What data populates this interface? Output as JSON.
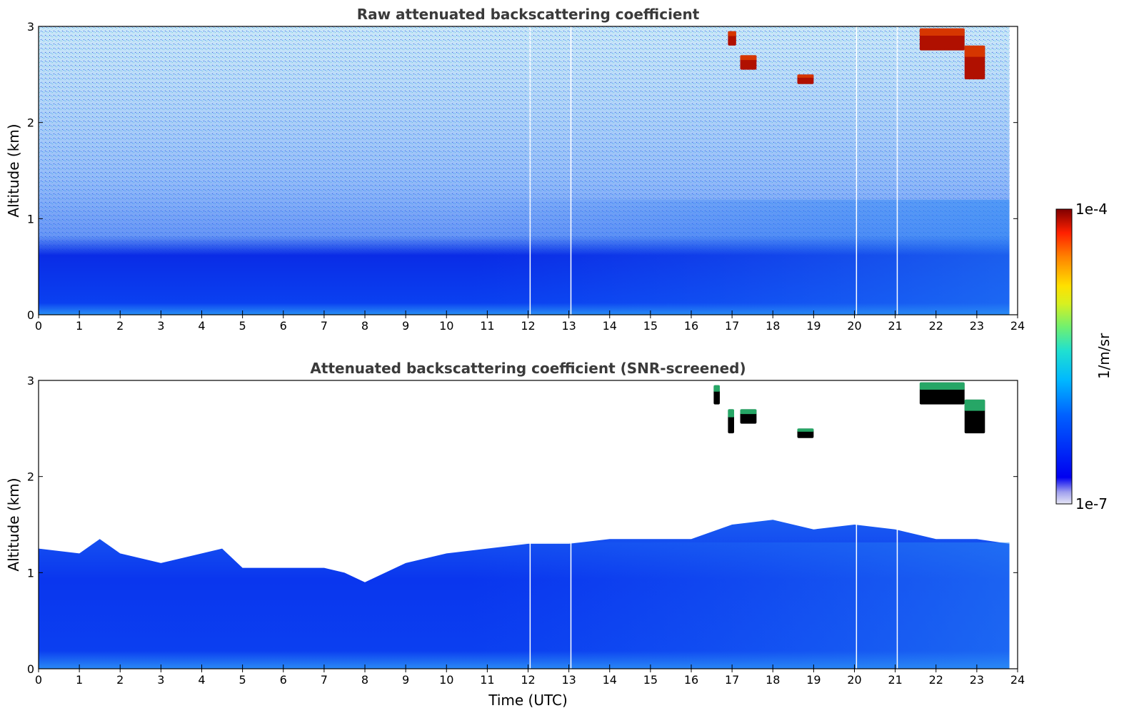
{
  "figure_title": "",
  "chart_data": [
    {
      "type": "heatmap",
      "title": "Raw attenuated backscattering coefficient",
      "xlabel": "",
      "ylabel": "Altitude (km)",
      "xlim": [
        0,
        24
      ],
      "ylim": [
        0,
        3
      ],
      "x_ticks": [
        "0",
        "1",
        "2",
        "3",
        "4",
        "5",
        "6",
        "7",
        "8",
        "9",
        "10",
        "11",
        "12",
        "13",
        "14",
        "15",
        "16",
        "17",
        "18",
        "19",
        "20",
        "21",
        "22",
        "23",
        "24"
      ],
      "y_ticks": [
        "0",
        "1",
        "2",
        "3"
      ],
      "data_end_time": 23.8,
      "gap_times": [
        12.05,
        13.05,
        20.05,
        21.05
      ],
      "description_layers": [
        {
          "kind": "boundary_layer",
          "altitude_km": [
            0,
            0.7
          ],
          "level": "dense blue"
        },
        {
          "kind": "noisy_sky",
          "altitude_km": [
            0.7,
            3
          ],
          "level": "speckled blue/cyan/green"
        }
      ],
      "cloud_features": [
        {
          "time": [
            16.9,
            17.1
          ],
          "altitude": [
            2.8,
            2.95
          ]
        },
        {
          "time": [
            17.2,
            17.6
          ],
          "altitude": [
            2.55,
            2.7
          ]
        },
        {
          "time": [
            18.6,
            19.0
          ],
          "altitude": [
            2.4,
            2.5
          ]
        },
        {
          "time": [
            21.6,
            22.7
          ],
          "altitude": [
            2.75,
            2.98
          ]
        },
        {
          "time": [
            22.7,
            23.2
          ],
          "altitude": [
            2.45,
            2.8
          ]
        }
      ]
    },
    {
      "type": "heatmap",
      "title": "Attenuated backscattering coefficient (SNR-screened)",
      "xlabel": "Time (UTC)",
      "ylabel": "Altitude (km)",
      "xlim": [
        0,
        24
      ],
      "ylim": [
        0,
        3
      ],
      "x_ticks": [
        "0",
        "1",
        "2",
        "3",
        "4",
        "5",
        "6",
        "7",
        "8",
        "9",
        "10",
        "11",
        "12",
        "13",
        "14",
        "15",
        "16",
        "17",
        "18",
        "19",
        "20",
        "21",
        "22",
        "23",
        "24"
      ],
      "y_ticks": [
        "0",
        "1",
        "2",
        "3"
      ],
      "data_end_time": 23.8,
      "gap_times": [
        12.05,
        13.05,
        20.05,
        21.05
      ],
      "screened_top_km": [
        [
          0,
          1.25
        ],
        [
          1,
          1.2
        ],
        [
          1.5,
          1.35
        ],
        [
          2,
          1.2
        ],
        [
          3,
          1.1
        ],
        [
          4,
          1.2
        ],
        [
          4.5,
          1.25
        ],
        [
          5,
          1.05
        ],
        [
          6,
          1.05
        ],
        [
          7,
          1.05
        ],
        [
          7.5,
          1.0
        ],
        [
          8,
          0.9
        ],
        [
          9,
          1.1
        ],
        [
          10,
          1.2
        ],
        [
          11,
          1.25
        ],
        [
          12,
          1.3
        ],
        [
          13,
          1.3
        ],
        [
          14,
          1.35
        ],
        [
          15,
          1.35
        ],
        [
          16,
          1.35
        ],
        [
          17,
          1.5
        ],
        [
          18,
          1.55
        ],
        [
          19,
          1.45
        ],
        [
          20,
          1.5
        ],
        [
          21,
          1.45
        ],
        [
          22,
          1.35
        ],
        [
          23,
          1.35
        ],
        [
          23.8,
          1.3
        ]
      ],
      "cloud_features": [
        {
          "time": [
            16.55,
            16.7
          ],
          "altitude": [
            2.75,
            2.95
          ]
        },
        {
          "time": [
            16.9,
            17.05
          ],
          "altitude": [
            2.45,
            2.7
          ]
        },
        {
          "time": [
            17.2,
            17.6
          ],
          "altitude": [
            2.55,
            2.7
          ]
        },
        {
          "time": [
            18.6,
            19.0
          ],
          "altitude": [
            2.4,
            2.5
          ]
        },
        {
          "time": [
            21.6,
            22.7
          ],
          "altitude": [
            2.75,
            2.98
          ]
        },
        {
          "time": [
            22.7,
            23.2
          ],
          "altitude": [
            2.45,
            2.8
          ]
        }
      ]
    }
  ],
  "colorbar": {
    "label": "1/m/sr",
    "max_label": "1e-4",
    "min_label": "1e-7",
    "range": [
      1e-07,
      0.0001
    ],
    "scale": "log",
    "colormap": "jet-like"
  }
}
